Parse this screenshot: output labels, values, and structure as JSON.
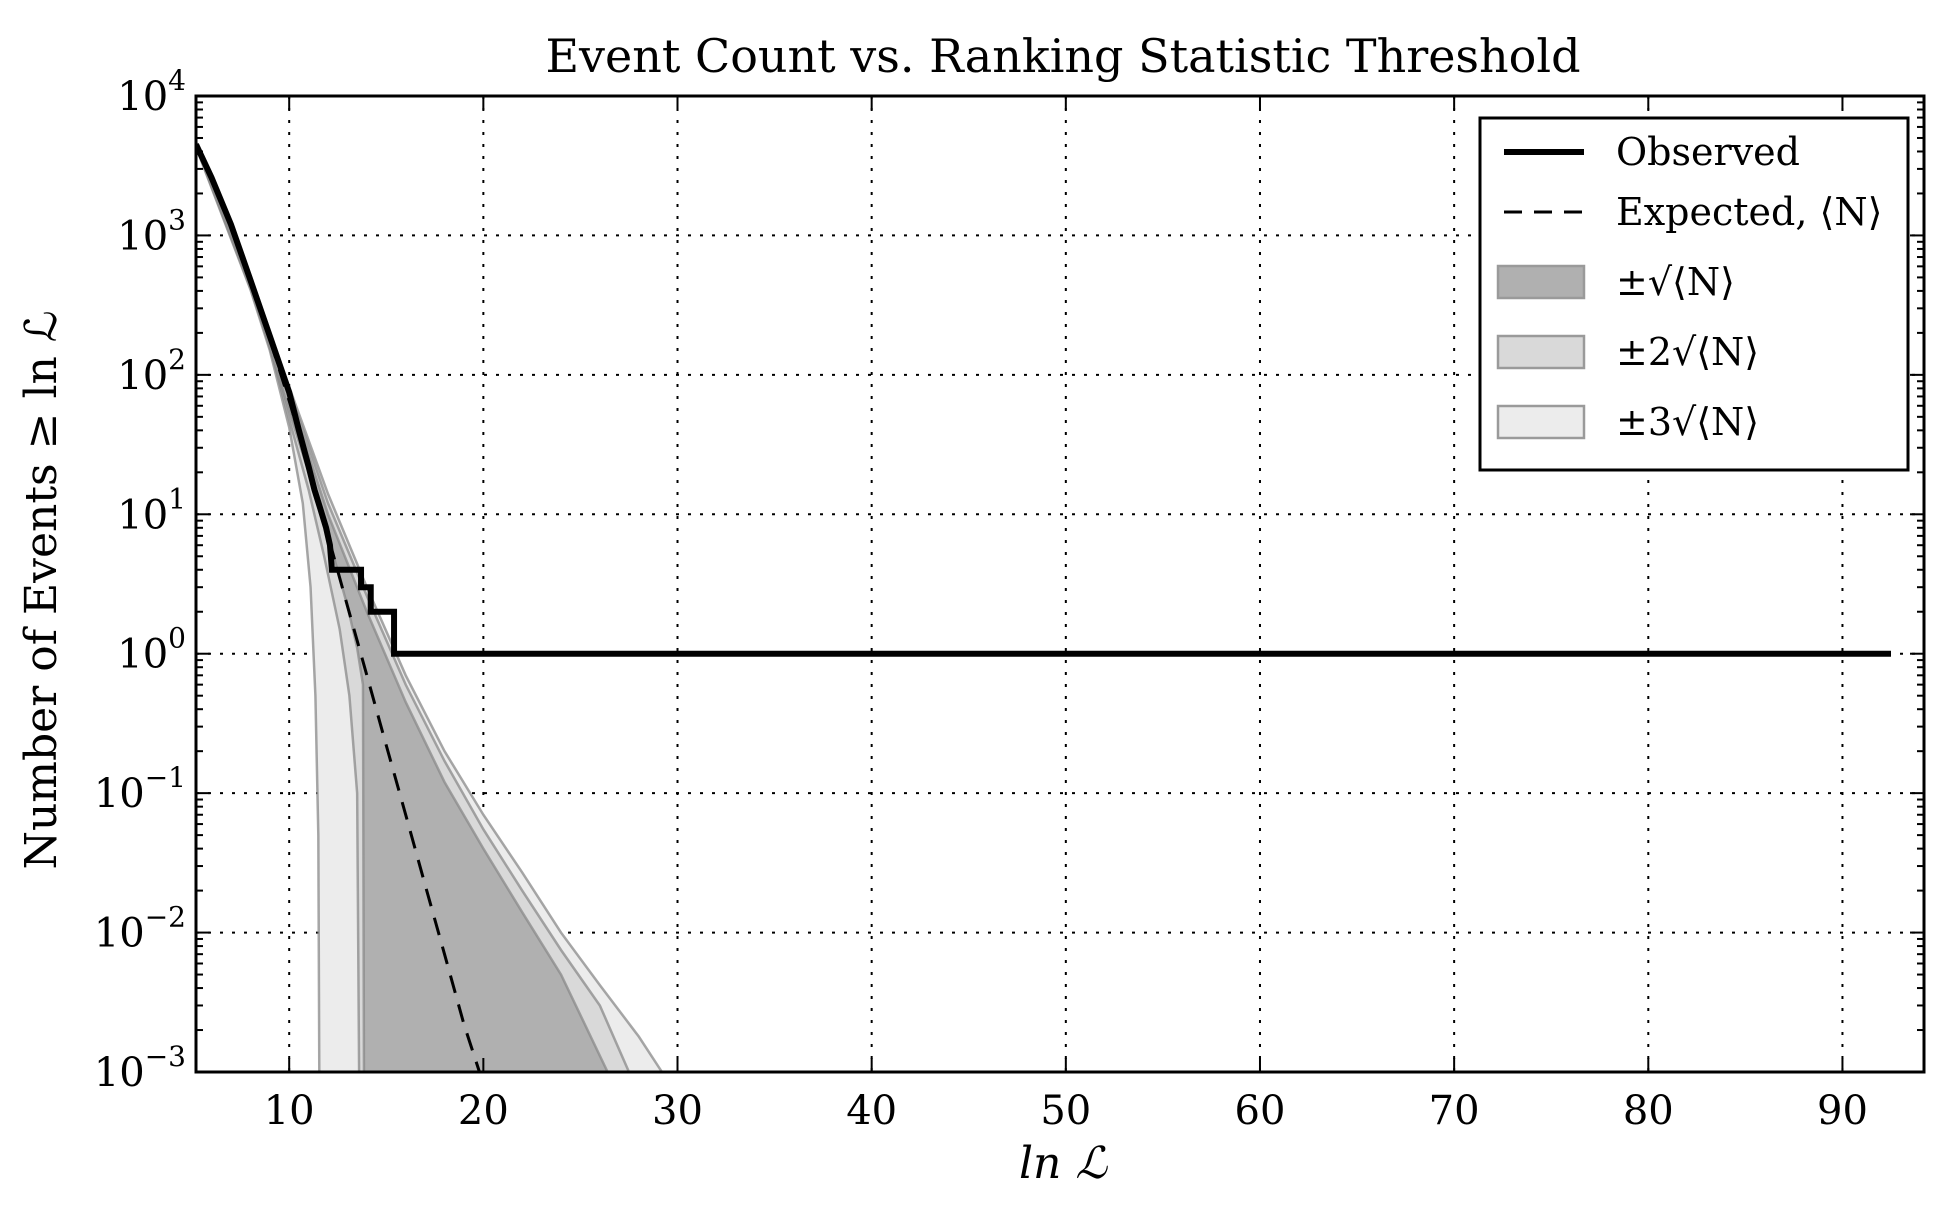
{
  "chart_data": {
    "type": "line",
    "title": "Event Count vs. Ranking Statistic Threshold",
    "xlabel": "ln ℒ",
    "ylabel": "Number of Events ≥ ln ℒ",
    "xlim": [
      5.2,
      94.2
    ],
    "ylim_log10": [
      -3,
      4
    ],
    "yscale": "log",
    "grid": true,
    "legend_position": "top-right",
    "x_ticks": [
      10,
      20,
      30,
      40,
      50,
      60,
      70,
      80,
      90
    ],
    "x_tick_labels": [
      "10",
      "20",
      "30",
      "40",
      "50",
      "60",
      "70",
      "80",
      "90"
    ],
    "y_ticks": [
      {
        "base": "10",
        "exp": "4"
      },
      {
        "base": "10",
        "exp": "3"
      },
      {
        "base": "10",
        "exp": "2"
      },
      {
        "base": "10",
        "exp": "1"
      },
      {
        "base": "10",
        "exp": "0"
      },
      {
        "base": "10",
        "exp": "−1"
      },
      {
        "base": "10",
        "exp": "−2"
      },
      {
        "base": "10",
        "exp": "−3"
      }
    ],
    "legend": {
      "observed": "Observed",
      "expected_prefix": "Expected, ",
      "expected_symbol": "⟨N⟩",
      "band1_prefix": "±",
      "band2_prefix": "±2",
      "band3_prefix": "±3",
      "band_radicand": "⟨N⟩"
    },
    "series": [
      {
        "name": "Observed",
        "style": "solid",
        "color": "#000000",
        "points": [
          [
            5.2,
            4500
          ],
          [
            6,
            2600
          ],
          [
            7,
            1200
          ],
          [
            8,
            480
          ],
          [
            9,
            190
          ],
          [
            10,
            75
          ],
          [
            10.5,
            40
          ],
          [
            11,
            22
          ],
          [
            11.3,
            15
          ],
          [
            11.6,
            11
          ],
          [
            11.9,
            8
          ],
          [
            12.1,
            6
          ],
          [
            12.2,
            4
          ],
          [
            13.7,
            4
          ],
          [
            13.7,
            3
          ],
          [
            14.2,
            3
          ],
          [
            14.2,
            2
          ],
          [
            15.4,
            2
          ],
          [
            15.4,
            1
          ],
          [
            92.5,
            1
          ]
        ]
      },
      {
        "name": "Expected, ⟨N⟩",
        "style": "dashed",
        "color": "#000000",
        "points": [
          [
            5.2,
            4500
          ],
          [
            6,
            2500
          ],
          [
            7,
            1150
          ],
          [
            8,
            460
          ],
          [
            9,
            180
          ],
          [
            10,
            65
          ],
          [
            11,
            22
          ],
          [
            12,
            7
          ],
          [
            13,
            2.2
          ],
          [
            14,
            0.7
          ],
          [
            15,
            0.22
          ],
          [
            16,
            0.07
          ],
          [
            17,
            0.022
          ],
          [
            18,
            0.007
          ],
          [
            19,
            0.0022
          ],
          [
            19.8,
            0.001
          ]
        ]
      }
    ],
    "bands": [
      {
        "name": "±3√⟨N⟩",
        "color": "#ececec",
        "upper": [
          [
            5.2,
            4700
          ],
          [
            8,
            520
          ],
          [
            10,
            82
          ],
          [
            12,
            14
          ],
          [
            14,
            3.0
          ],
          [
            16,
            0.7
          ],
          [
            18,
            0.2
          ],
          [
            20,
            0.07
          ],
          [
            22,
            0.027
          ],
          [
            24,
            0.01
          ],
          [
            26,
            0.0042
          ],
          [
            28,
            0.0018
          ],
          [
            29.2,
            0.001
          ]
        ],
        "lower": [
          [
            5.2,
            4300
          ],
          [
            8,
            410
          ],
          [
            9,
            150
          ],
          [
            10,
            42
          ],
          [
            10.7,
            12
          ],
          [
            11.1,
            3
          ],
          [
            11.35,
            0.5
          ],
          [
            11.5,
            0.05
          ],
          [
            11.55,
            0.001
          ]
        ]
      },
      {
        "name": "±2√⟨N⟩",
        "color": "#d9d9d9",
        "upper": [
          [
            5.2,
            4650
          ],
          [
            8,
            505
          ],
          [
            10,
            78
          ],
          [
            12,
            12
          ],
          [
            14,
            2.6
          ],
          [
            16,
            0.6
          ],
          [
            18,
            0.17
          ],
          [
            20,
            0.055
          ],
          [
            22,
            0.02
          ],
          [
            24,
            0.0075
          ],
          [
            26,
            0.003
          ],
          [
            27.5,
            0.001
          ]
        ],
        "lower": [
          [
            5.2,
            4350
          ],
          [
            8,
            420
          ],
          [
            9,
            160
          ],
          [
            10,
            48
          ],
          [
            11,
            15
          ],
          [
            11.8,
            5
          ],
          [
            12.6,
            1.5
          ],
          [
            13.1,
            0.5
          ],
          [
            13.5,
            0.1
          ],
          [
            13.6,
            0.001
          ]
        ]
      },
      {
        "name": "±√⟨N⟩",
        "color": "#b0b0b0",
        "upper": [
          [
            5.2,
            4600
          ],
          [
            8,
            490
          ],
          [
            10,
            72
          ],
          [
            12,
            10
          ],
          [
            14,
            2.0
          ],
          [
            16,
            0.45
          ],
          [
            18,
            0.12
          ],
          [
            20,
            0.04
          ],
          [
            22,
            0.014
          ],
          [
            24,
            0.005
          ],
          [
            26.4,
            0.001
          ]
        ],
        "lower": [
          [
            5.2,
            4400
          ],
          [
            8,
            440
          ],
          [
            10,
            55
          ],
          [
            11,
            20
          ],
          [
            12,
            7
          ],
          [
            13,
            2.2
          ],
          [
            13.5,
            1.1
          ],
          [
            13.8,
            0.6
          ],
          [
            13.85,
            0.001
          ]
        ]
      }
    ]
  }
}
